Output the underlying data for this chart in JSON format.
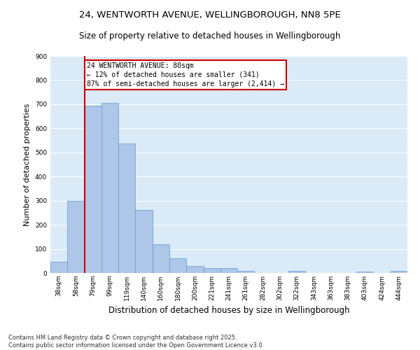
{
  "title_line1": "24, WENTWORTH AVENUE, WELLINGBOROUGH, NN8 5PE",
  "title_line2": "Size of property relative to detached houses in Wellingborough",
  "xlabel": "Distribution of detached houses by size in Wellingborough",
  "ylabel": "Number of detached properties",
  "categories": [
    "38sqm",
    "58sqm",
    "79sqm",
    "99sqm",
    "119sqm",
    "140sqm",
    "160sqm",
    "180sqm",
    "200sqm",
    "221sqm",
    "241sqm",
    "261sqm",
    "282sqm",
    "302sqm",
    "322sqm",
    "343sqm",
    "363sqm",
    "383sqm",
    "403sqm",
    "424sqm",
    "444sqm"
  ],
  "values": [
    47,
    300,
    695,
    705,
    537,
    260,
    120,
    60,
    28,
    20,
    20,
    8,
    0,
    0,
    8,
    0,
    0,
    0,
    5,
    0,
    8
  ],
  "bar_color": "#aec6e8",
  "bar_edge_color": "#5b9bd5",
  "background_color": "#daeaf7",
  "grid_color": "#ffffff",
  "red_line_bar_index": 2,
  "annotation_text_line1": "24 WENTWORTH AVENUE: 80sqm",
  "annotation_text_line2": "← 12% of detached houses are smaller (341)",
  "annotation_text_line3": "87% of semi-detached houses are larger (2,414) →",
  "annotation_box_facecolor": "#ffffff",
  "annotation_box_edgecolor": "#cc0000",
  "red_line_color": "#cc0000",
  "footnote_line1": "Contains HM Land Registry data © Crown copyright and database right 2025.",
  "footnote_line2": "Contains public sector information licensed under the Open Government Licence v3.0.",
  "ylim": [
    0,
    900
  ],
  "yticks": [
    0,
    100,
    200,
    300,
    400,
    500,
    600,
    700,
    800,
    900
  ],
  "title1_fontsize": 9.5,
  "title2_fontsize": 8.5,
  "ylabel_fontsize": 8,
  "xlabel_fontsize": 8.5,
  "tick_fontsize": 6.5,
  "footnote_fontsize": 6,
  "ann_fontsize": 7
}
